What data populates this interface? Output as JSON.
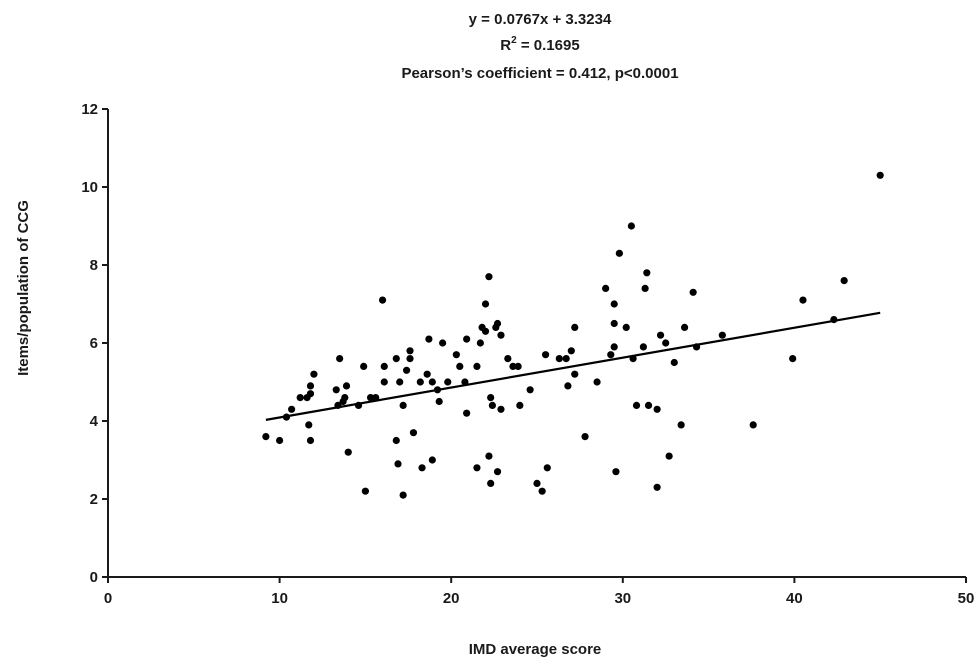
{
  "chart_data": {
    "type": "scatter",
    "title_lines": [
      "y = 0.0767x + 3.3234",
      "R2 = 0.1695",
      "Pearson’s coefficient = 0.412, p<0.0001"
    ],
    "r2_base": "R",
    "r2_sup": "2",
    "r2_rest": " = 0.1695",
    "xlabel": "IMD average score",
    "ylabel": "Items/population of CCG",
    "xlim": [
      0,
      50
    ],
    "ylim": [
      0,
      12
    ],
    "xticks": [
      0,
      10,
      20,
      30,
      40,
      50
    ],
    "yticks": [
      0,
      2,
      4,
      6,
      8,
      10,
      12
    ],
    "grid": false,
    "trendline": {
      "slope": 0.0767,
      "intercept": 3.3234,
      "x_range": [
        9.2,
        45
      ]
    },
    "points": [
      [
        9.2,
        3.6
      ],
      [
        10.0,
        3.5
      ],
      [
        10.4,
        4.1
      ],
      [
        10.7,
        4.3
      ],
      [
        11.2,
        4.6
      ],
      [
        11.6,
        4.6
      ],
      [
        11.8,
        4.7
      ],
      [
        11.8,
        4.9
      ],
      [
        11.7,
        3.9
      ],
      [
        11.8,
        3.5
      ],
      [
        12.0,
        5.2
      ],
      [
        13.3,
        4.8
      ],
      [
        13.4,
        4.4
      ],
      [
        13.5,
        5.6
      ],
      [
        13.8,
        4.6
      ],
      [
        13.7,
        4.5
      ],
      [
        13.9,
        4.9
      ],
      [
        14.0,
        3.2
      ],
      [
        14.6,
        4.4
      ],
      [
        14.9,
        5.4
      ],
      [
        15.0,
        2.2
      ],
      [
        15.3,
        4.6
      ],
      [
        15.6,
        4.6
      ],
      [
        16.0,
        7.1
      ],
      [
        16.1,
        5.4
      ],
      [
        16.1,
        5.0
      ],
      [
        16.8,
        5.6
      ],
      [
        16.9,
        2.9
      ],
      [
        16.8,
        3.5
      ],
      [
        17.0,
        5.0
      ],
      [
        17.2,
        4.4
      ],
      [
        17.2,
        2.1
      ],
      [
        17.4,
        5.3
      ],
      [
        17.6,
        5.6
      ],
      [
        17.6,
        5.8
      ],
      [
        17.8,
        3.7
      ],
      [
        18.2,
        5.0
      ],
      [
        18.3,
        2.8
      ],
      [
        18.6,
        5.2
      ],
      [
        18.7,
        6.1
      ],
      [
        18.9,
        3.0
      ],
      [
        18.9,
        5.0
      ],
      [
        19.2,
        4.8
      ],
      [
        19.3,
        4.5
      ],
      [
        19.5,
        6.0
      ],
      [
        19.8,
        5.0
      ],
      [
        20.3,
        5.7
      ],
      [
        20.5,
        5.4
      ],
      [
        20.9,
        6.1
      ],
      [
        20.9,
        4.2
      ],
      [
        20.8,
        5.0
      ],
      [
        21.5,
        5.4
      ],
      [
        21.5,
        2.8
      ],
      [
        21.7,
        6.0
      ],
      [
        21.8,
        6.4
      ],
      [
        22.0,
        7.0
      ],
      [
        22.0,
        6.3
      ],
      [
        22.2,
        7.7
      ],
      [
        22.2,
        3.1
      ],
      [
        22.3,
        2.4
      ],
      [
        22.3,
        4.6
      ],
      [
        22.4,
        4.4
      ],
      [
        22.6,
        6.4
      ],
      [
        22.7,
        2.7
      ],
      [
        22.7,
        6.5
      ],
      [
        22.9,
        4.3
      ],
      [
        22.9,
        6.2
      ],
      [
        23.3,
        5.6
      ],
      [
        23.6,
        5.4
      ],
      [
        23.9,
        5.4
      ],
      [
        24.0,
        4.4
      ],
      [
        24.6,
        4.8
      ],
      [
        25.0,
        2.4
      ],
      [
        25.3,
        2.2
      ],
      [
        25.5,
        5.7
      ],
      [
        25.6,
        2.8
      ],
      [
        26.3,
        5.6
      ],
      [
        26.7,
        5.6
      ],
      [
        26.8,
        4.9
      ],
      [
        27.0,
        5.8
      ],
      [
        27.2,
        5.2
      ],
      [
        27.2,
        6.4
      ],
      [
        27.8,
        3.6
      ],
      [
        28.5,
        5.0
      ],
      [
        29.0,
        7.4
      ],
      [
        29.3,
        5.7
      ],
      [
        29.5,
        6.5
      ],
      [
        29.5,
        5.9
      ],
      [
        29.5,
        7.0
      ],
      [
        29.6,
        2.7
      ],
      [
        29.8,
        8.3
      ],
      [
        30.2,
        6.4
      ],
      [
        30.5,
        9.0
      ],
      [
        30.6,
        5.6
      ],
      [
        30.8,
        4.4
      ],
      [
        31.2,
        5.9
      ],
      [
        31.3,
        7.4
      ],
      [
        31.4,
        7.8
      ],
      [
        31.5,
        4.4
      ],
      [
        32.0,
        4.3
      ],
      [
        32.0,
        2.3
      ],
      [
        32.2,
        6.2
      ],
      [
        32.5,
        6.0
      ],
      [
        32.7,
        3.1
      ],
      [
        33.0,
        5.5
      ],
      [
        33.4,
        3.9
      ],
      [
        33.6,
        6.4
      ],
      [
        34.1,
        7.3
      ],
      [
        34.3,
        5.9
      ],
      [
        35.8,
        6.2
      ],
      [
        37.6,
        3.9
      ],
      [
        39.9,
        5.6
      ],
      [
        40.5,
        7.1
      ],
      [
        42.3,
        6.6
      ],
      [
        42.9,
        7.6
      ],
      [
        45.0,
        10.3
      ]
    ]
  }
}
